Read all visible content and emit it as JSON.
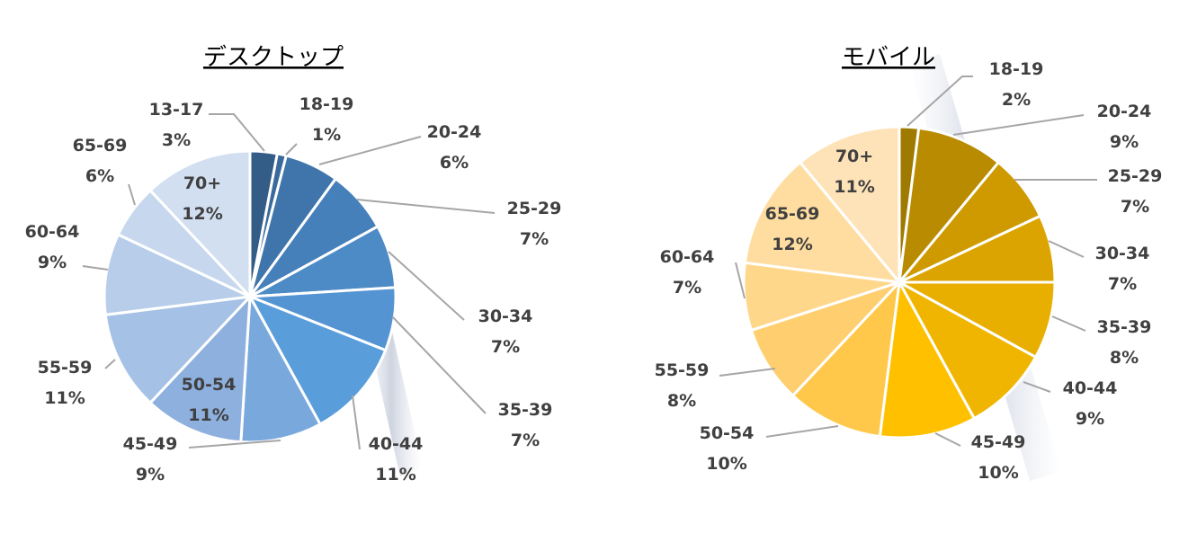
{
  "chart_data": [
    {
      "type": "pie",
      "title": "デスクトップ",
      "categories": [
        "13-17",
        "18-19",
        "20-24",
        "25-29",
        "30-34",
        "35-39",
        "40-44",
        "45-49",
        "50-54",
        "55-59",
        "60-64",
        "65-69",
        "70+"
      ],
      "values": [
        3,
        1,
        6,
        7,
        7,
        7,
        11,
        9,
        11,
        11,
        9,
        6,
        12
      ],
      "value_labels": [
        "3%",
        "1%",
        "6%",
        "7%",
        "7%",
        "7%",
        "11%",
        "9%",
        "11%",
        "11%",
        "9%",
        "6%",
        "12%"
      ],
      "colors": [
        "#335C87",
        "#3A6A9B",
        "#3F75AB",
        "#4680BA",
        "#4D8BC6",
        "#5494D2",
        "#5A9DDB",
        "#79A9DC",
        "#8EB0DE",
        "#A5C1E5",
        "#B7CDEA",
        "#C6D7EE",
        "#D2DFF1"
      ]
    },
    {
      "type": "pie",
      "title": "モバイル",
      "categories": [
        "18-19",
        "20-24",
        "25-29",
        "30-34",
        "35-39",
        "40-44",
        "45-49",
        "50-54",
        "55-59",
        "60-64",
        "65-69",
        "70+"
      ],
      "values": [
        2,
        9,
        7,
        7,
        8,
        9,
        10,
        10,
        8,
        7,
        12,
        11
      ],
      "value_labels": [
        "2%",
        "9%",
        "7%",
        "7%",
        "8%",
        "9%",
        "10%",
        "10%",
        "8%",
        "7%",
        "12%",
        "11%"
      ],
      "colors": [
        "#9E7A00",
        "#B88B00",
        "#CE9A00",
        "#DCA400",
        "#E8AE00",
        "#F0B500",
        "#FFC000",
        "#FFC84A",
        "#FFCE6E",
        "#FFD78A",
        "#FFDDA0",
        "#FFE3B8"
      ]
    }
  ]
}
